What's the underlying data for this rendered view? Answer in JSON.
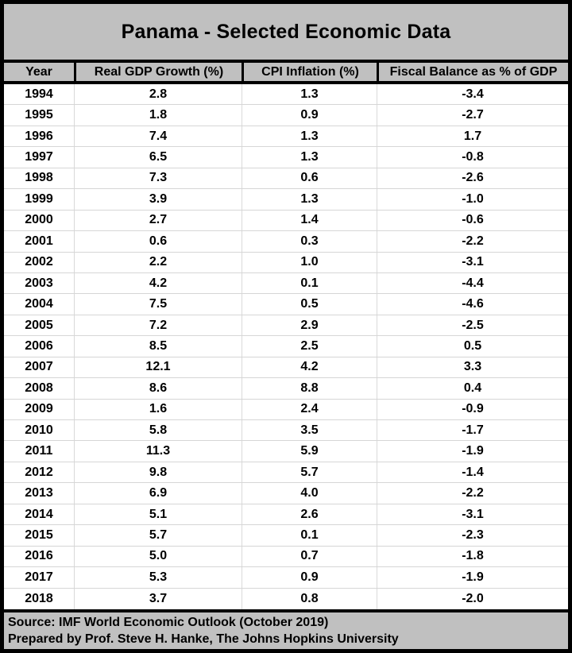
{
  "title": "Panama - Selected Economic Data",
  "chart_data": {
    "type": "table",
    "title": "Panama - Selected Economic Data",
    "columns": [
      "Year",
      "Real GDP Growth (%)",
      "CPI Inflation (%)",
      "Fiscal Balance as % of GDP"
    ],
    "rows": [
      [
        "1994",
        "2.8",
        "1.3",
        "-3.4"
      ],
      [
        "1995",
        "1.8",
        "0.9",
        "-2.7"
      ],
      [
        "1996",
        "7.4",
        "1.3",
        "1.7"
      ],
      [
        "1997",
        "6.5",
        "1.3",
        "-0.8"
      ],
      [
        "1998",
        "7.3",
        "0.6",
        "-2.6"
      ],
      [
        "1999",
        "3.9",
        "1.3",
        "-1.0"
      ],
      [
        "2000",
        "2.7",
        "1.4",
        "-0.6"
      ],
      [
        "2001",
        "0.6",
        "0.3",
        "-2.2"
      ],
      [
        "2002",
        "2.2",
        "1.0",
        "-3.1"
      ],
      [
        "2003",
        "4.2",
        "0.1",
        "-4.4"
      ],
      [
        "2004",
        "7.5",
        "0.5",
        "-4.6"
      ],
      [
        "2005",
        "7.2",
        "2.9",
        "-2.5"
      ],
      [
        "2006",
        "8.5",
        "2.5",
        "0.5"
      ],
      [
        "2007",
        "12.1",
        "4.2",
        "3.3"
      ],
      [
        "2008",
        "8.6",
        "8.8",
        "0.4"
      ],
      [
        "2009",
        "1.6",
        "2.4",
        "-0.9"
      ],
      [
        "2010",
        "5.8",
        "3.5",
        "-1.7"
      ],
      [
        "2011",
        "11.3",
        "5.9",
        "-1.9"
      ],
      [
        "2012",
        "9.8",
        "5.7",
        "-1.4"
      ],
      [
        "2013",
        "6.9",
        "4.0",
        "-2.2"
      ],
      [
        "2014",
        "5.1",
        "2.6",
        "-3.1"
      ],
      [
        "2015",
        "5.7",
        "0.1",
        "-2.3"
      ],
      [
        "2016",
        "5.0",
        "0.7",
        "-1.8"
      ],
      [
        "2017",
        "5.3",
        "0.9",
        "-1.9"
      ],
      [
        "2018",
        "3.7",
        "0.8",
        "-2.0"
      ]
    ],
    "source_note": "Source: IMF World Economic Outlook (October 2019)",
    "prepared_note": "Prepared by Prof. Steve H. Hanke, The Johns Hopkins University"
  },
  "colors": {
    "band_gray": "#c0c0c0",
    "border_black": "#000000",
    "grid_line": "#d9d9d9",
    "body_background": "#ffffff",
    "text": "#000000"
  }
}
